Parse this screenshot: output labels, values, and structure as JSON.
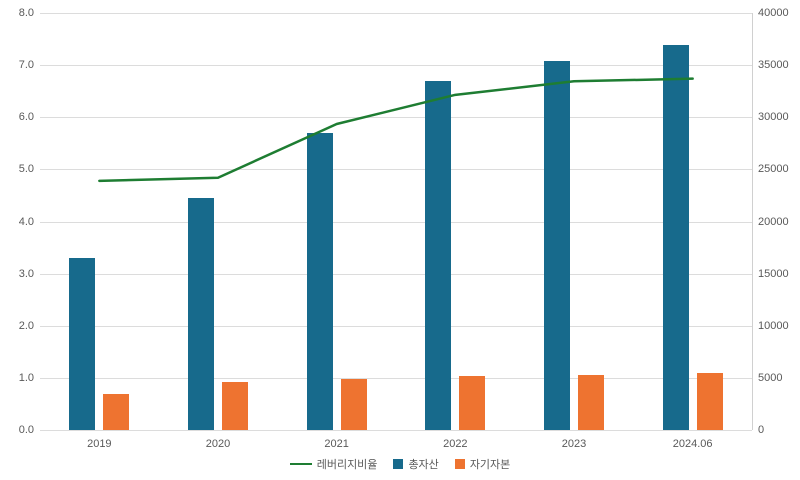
{
  "chart_data": {
    "type": "combo",
    "title": "",
    "categories": [
      "2019",
      "2020",
      "2021",
      "2022",
      "2023",
      "2024.06"
    ],
    "series": [
      {
        "name": "레버리지비율",
        "kind": "line",
        "axis": "left",
        "color": "#1e7d32",
        "values": [
          4.78,
          4.84,
          5.87,
          6.43,
          6.69,
          6.74
        ]
      },
      {
        "name": "총자산",
        "kind": "bar",
        "axis": "right",
        "color": "#176a8c",
        "values": [
          16500,
          22300,
          28500,
          33500,
          35400,
          36900
        ]
      },
      {
        "name": "자기자본",
        "kind": "bar",
        "axis": "right",
        "color": "#ee7330",
        "values": [
          3500,
          4650,
          4900,
          5150,
          5250,
          5500
        ]
      }
    ],
    "left_axis": {
      "min": 0,
      "max": 8,
      "step": 1,
      "decimals": 1
    },
    "right_axis": {
      "min": 0,
      "max": 40000,
      "step": 5000,
      "decimals": 0
    },
    "grid": true,
    "legend_position": "bottom",
    "colors": {
      "grid": "#dcdcdc",
      "text": "#595959",
      "background": "#ffffff"
    }
  },
  "legend": {
    "line_label": "레버리지비율",
    "bar1_label": "총자산",
    "bar2_label": "자기자본"
  }
}
